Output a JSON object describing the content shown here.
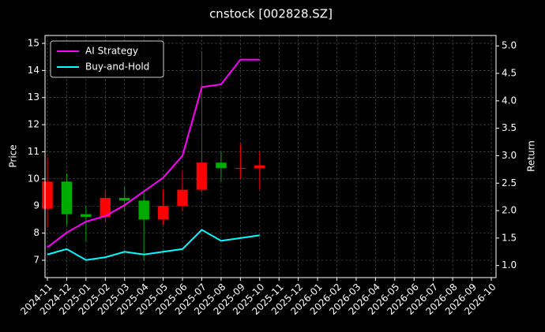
{
  "chart_data": {
    "type": "candlestick",
    "title": "cnstock [002828.SZ]",
    "ylabel": "Price",
    "y2label": "Return",
    "categories": [
      "2024-11",
      "2024-12",
      "2025-01",
      "2025-02",
      "2025-03",
      "2025-04",
      "2025-05",
      "2025-06",
      "2025-07",
      "2025-08",
      "2025-09",
      "2025-10",
      "2025-11",
      "2025-12",
      "2026-01",
      "2026-02",
      "2026-03",
      "2026-04",
      "2026-05",
      "2026-06",
      "2026-07",
      "2026-08",
      "2026-09",
      "2026-10"
    ],
    "x": [
      "2024-11",
      "2024-12",
      "2025-01",
      "2025-02",
      "2025-03",
      "2025-04",
      "2025-05",
      "2025-06",
      "2025-07",
      "2025-08",
      "2025-09",
      "2025-10"
    ],
    "open": [
      8.9,
      9.9,
      8.7,
      8.6,
      9.3,
      9.2,
      8.5,
      9.0,
      9.6,
      10.6,
      10.4,
      10.4
    ],
    "high": [
      10.8,
      10.2,
      9.0,
      9.6,
      9.7,
      9.6,
      9.6,
      10.3,
      14.7,
      11.0,
      11.3,
      11.0
    ],
    "low": [
      8.2,
      8.3,
      7.7,
      8.4,
      8.8,
      7.0,
      8.3,
      8.8,
      9.5,
      9.9,
      10.0,
      9.6
    ],
    "close": [
      9.9,
      8.7,
      8.6,
      9.3,
      9.2,
      8.5,
      9.0,
      9.6,
      10.6,
      10.4,
      10.4,
      10.5
    ],
    "up_color": "#ff0000",
    "down_color": "#00aa00",
    "series": [
      {
        "name": "AI Strategy",
        "color": "#ff00ff",
        "axis": "y2",
        "values": [
          1.33,
          1.6,
          1.8,
          1.9,
          2.1,
          2.35,
          2.6,
          3.0,
          4.25,
          4.3,
          4.75,
          4.75
        ]
      },
      {
        "name": "Buy-and-Hold",
        "color": "#00ffff",
        "axis": "y2",
        "values": [
          1.2,
          1.3,
          1.1,
          1.15,
          1.25,
          1.2,
          1.25,
          1.3,
          1.65,
          1.45,
          1.5,
          1.55
        ]
      }
    ],
    "ylim": [
      6.36,
      15.29
    ],
    "yticks": [
      7,
      8,
      9,
      10,
      11,
      12,
      13,
      14,
      15
    ],
    "y2lim": [
      0.78,
      5.19
    ],
    "y2ticks": [
      {
        "value": 1.0,
        "label": "1.0"
      },
      1.5,
      {
        "value": 2.0,
        "label": "2.0"
      },
      2.5,
      {
        "value": 3.0,
        "label": "3.0"
      },
      3.5,
      {
        "value": 4.0,
        "label": "4.0"
      },
      4.5,
      {
        "value": 5.0,
        "label": "5.0"
      }
    ],
    "grid": true,
    "legend": "upper left"
  }
}
